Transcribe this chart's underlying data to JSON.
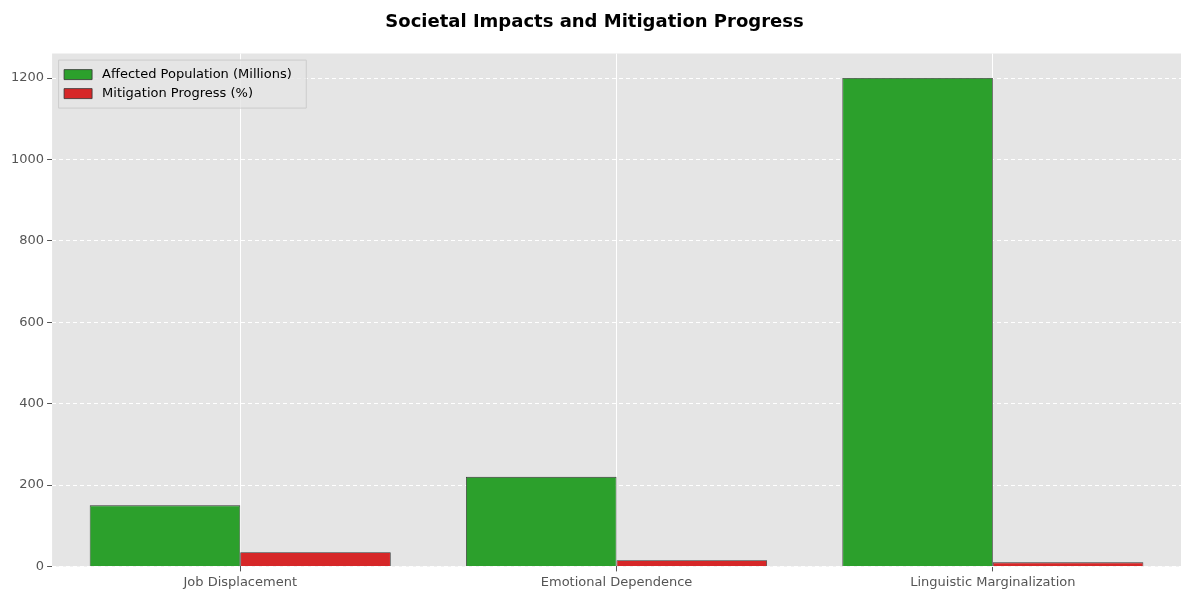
{
  "chart_data": {
    "type": "bar",
    "title": "Societal Impacts and Mitigation Progress",
    "categories": [
      "Job Displacement",
      "Emotional Dependence",
      "Linguistic Marginalization"
    ],
    "series": [
      {
        "name": "Affected Population (Millions)",
        "color": "#2ca02c",
        "values": [
          150,
          220,
          1200
        ]
      },
      {
        "name": "Mitigation Progress (%)",
        "color": "#d62728",
        "values": [
          35,
          15,
          10
        ]
      }
    ],
    "ylim": [
      0,
      1260
    ],
    "yticks": [
      0,
      200,
      400,
      600,
      800,
      1000,
      1200
    ],
    "grid": true,
    "legend": "top left"
  }
}
